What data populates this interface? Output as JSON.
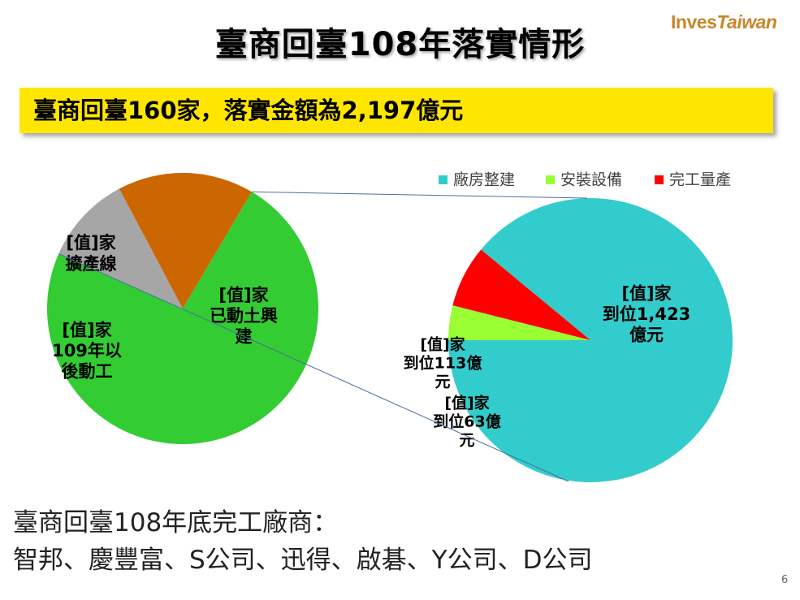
{
  "slide": {
    "title": "臺商回臺108年落實情形",
    "logo_main": "Inves",
    "logo_accent": "Taiwan",
    "banner": "臺商回臺160家，落實金額為2,197億元",
    "footer_heading": "臺商回臺108年底完工廠商：",
    "footer_companies": "智邦、慶豐富、S公司、迅得、啟碁、Y公司、D公司",
    "page_number": "6"
  },
  "colors": {
    "banner_bg": "#ffe600",
    "left_green": "#33cc33",
    "left_orange": "#cc6600",
    "left_gray": "#a6a6a6",
    "cyan": "#33cccc",
    "lime": "#99ff33",
    "red": "#ff0000",
    "connector": "#4a6fa5"
  },
  "chart_data": [
    {
      "type": "pie",
      "title": "",
      "slices": [
        {
          "label_lines": [
            "[值]家",
            "已動土興",
            "建"
          ],
          "value": 117
        },
        {
          "label_lines": [
            "[值]家",
            "109年以",
            "後動工"
          ],
          "value": 17
        },
        {
          "label_lines": [
            "[值]家",
            "擴產線"
          ],
          "value": 26
        }
      ]
    },
    {
      "type": "pie",
      "title": "",
      "legend": [
        "廠房整建",
        "安裝設備",
        "完工量產"
      ],
      "legend_position": "top",
      "slices": [
        {
          "name": "廠房整建",
          "label_lines": [
            "[值]家",
            "到位1,423",
            "億元"
          ],
          "value": 1423
        },
        {
          "name": "安裝設備",
          "label_lines": [
            "[值]家",
            "到位63億",
            "元"
          ],
          "value": 63
        },
        {
          "name": "完工量產",
          "label_lines": [
            "[值]家",
            "到位113億",
            "元"
          ],
          "value": 113
        }
      ]
    }
  ]
}
